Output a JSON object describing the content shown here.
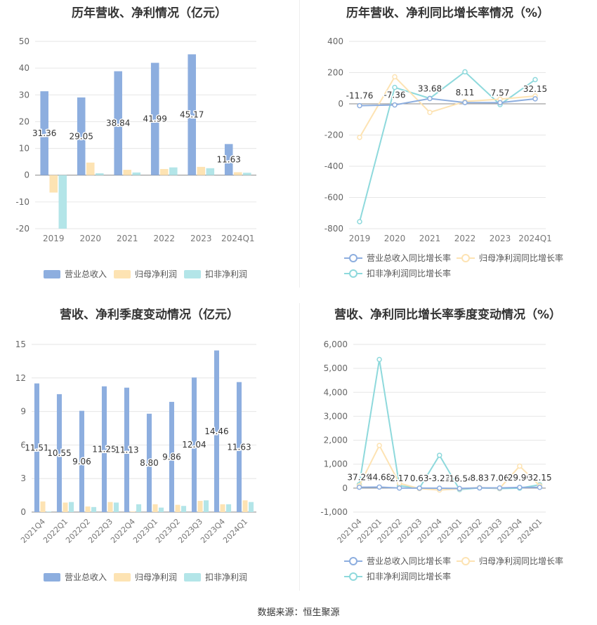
{
  "source": "数据来源：恒生聚源",
  "chart_data": [
    {
      "type": "bar",
      "title": "历年营收、净利情况（亿元）",
      "categories": [
        "2019",
        "2020",
        "2021",
        "2022",
        "2023",
        "2024Q1"
      ],
      "ylim": [
        -20,
        50
      ],
      "yticks": [
        -20,
        -10,
        0,
        10,
        20,
        30,
        40,
        50
      ],
      "series": [
        {
          "name": "营业总收入",
          "color": "#8daedf",
          "values": [
            31.36,
            29.05,
            38.84,
            41.99,
            45.17,
            11.63
          ]
        },
        {
          "name": "归母净利润",
          "color": "#fde3b3",
          "values": [
            -6.5,
            4.7,
            2.0,
            2.3,
            3.1,
            1.1
          ]
        },
        {
          "name": "扣非净利润",
          "color": "#b3e5e8",
          "values": [
            -20.0,
            0.7,
            1.0,
            2.9,
            2.6,
            0.9
          ]
        }
      ],
      "labels": [
        "31.36",
        "29.05",
        "38.84",
        "41.99",
        "45.17",
        "11.63"
      ],
      "legend": "bottom"
    },
    {
      "type": "line",
      "title": "历年营收、净利同比增长率情况（%）",
      "categories": [
        "2019",
        "2020",
        "2021",
        "2022",
        "2023",
        "2024Q1"
      ],
      "ylim": [
        -800,
        400
      ],
      "yticks": [
        -800,
        -600,
        -400,
        -200,
        0,
        200,
        400
      ],
      "series": [
        {
          "name": "营业总收入同比增长率",
          "color": "#8daedf",
          "values": [
            -11.76,
            -7.36,
            33.68,
            8.11,
            7.57,
            32.15
          ]
        },
        {
          "name": "归母净利润同比增长率",
          "color": "#fde3b3",
          "values": [
            -215,
            173,
            -55,
            15,
            30,
            50
          ]
        },
        {
          "name": "扣非净利润同比增长率",
          "color": "#8ed9dc",
          "values": [
            -755,
            105,
            35,
            205,
            -5,
            155
          ]
        }
      ],
      "labels": [
        "-11.76",
        "-7.36",
        "33.68",
        "8.11",
        "7.57",
        "32.15"
      ],
      "legend": "bottom"
    },
    {
      "type": "bar",
      "title": "营收、净利季度变动情况（亿元）",
      "categories": [
        "2021Q4",
        "2022Q1",
        "2022Q2",
        "2022Q3",
        "2022Q4",
        "2023Q1",
        "2023Q2",
        "2023Q3",
        "2023Q4",
        "2024Q1"
      ],
      "ylim": [
        0,
        15
      ],
      "yticks": [
        0,
        3,
        6,
        9,
        12,
        15
      ],
      "series": [
        {
          "name": "营业总收入",
          "color": "#8daedf",
          "values": [
            11.51,
            10.55,
            9.06,
            11.25,
            11.13,
            8.8,
            9.86,
            12.04,
            14.46,
            11.63
          ]
        },
        {
          "name": "归母净利润",
          "color": "#fde3b3",
          "values": [
            0.95,
            0.85,
            0.5,
            0.9,
            0.05,
            0.7,
            0.65,
            1.0,
            0.7,
            1.05
          ]
        },
        {
          "name": "扣非净利润",
          "color": "#b3e5e8",
          "values": [
            0.05,
            0.9,
            0.45,
            0.85,
            0.7,
            0.4,
            0.55,
            1.05,
            0.7,
            0.9
          ]
        }
      ],
      "labels": [
        "11.51",
        "10.55",
        "9.06",
        "11.25",
        "11.13",
        "8.80",
        "9.86",
        "12.04",
        "14.46",
        "11.63"
      ],
      "legend": "bottom"
    },
    {
      "type": "line",
      "title": "营收、净利同比增长率季度变动情况（%）",
      "categories": [
        "2021Q4",
        "2022Q1",
        "2022Q2",
        "2022Q3",
        "2022Q4",
        "2023Q1",
        "2023Q2",
        "2023Q3",
        "2023Q4",
        "2024Q1"
      ],
      "ylim": [
        -1000,
        6000
      ],
      "yticks": [
        -1000,
        0,
        1000,
        2000,
        3000,
        4000,
        5000,
        6000
      ],
      "ytick_labels": [
        "-1,000",
        "0",
        "1,000",
        "2,000",
        "3,000",
        "4,000",
        "5,000",
        "6,000"
      ],
      "series": [
        {
          "name": "营业总收入同比增长率",
          "color": "#8daedf",
          "values": [
            37.26,
            44.68,
            2.17,
            0.63,
            -3.23,
            -16.54,
            8.83,
            7.06,
            29.9,
            32.15
          ]
        },
        {
          "name": "归母净利润同比增长率",
          "color": "#fde3b3",
          "values": [
            100,
            1780,
            200,
            -20,
            -80,
            -30,
            20,
            -10,
            920,
            100
          ]
        },
        {
          "name": "扣非净利润同比增长率",
          "color": "#8ed9dc",
          "values": [
            150,
            5370,
            100,
            0,
            1370,
            -60,
            10,
            -20,
            0,
            140
          ]
        }
      ],
      "labels": [
        "37.26",
        "44.68",
        "2.17",
        "0.63",
        "-3.23",
        "-16.54",
        "8.83",
        "7.06",
        "29.90",
        "32.15"
      ],
      "legend": "bottom"
    }
  ]
}
